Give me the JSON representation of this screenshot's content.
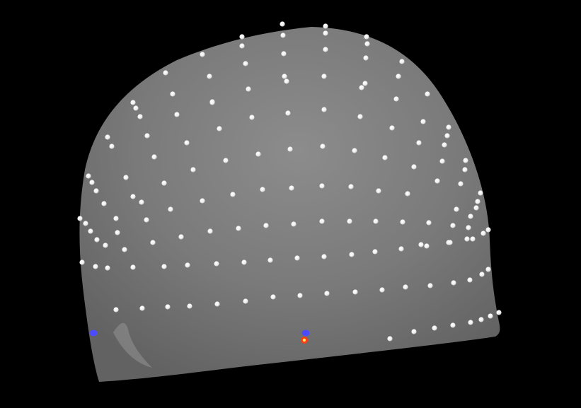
{
  "scene": {
    "background_color": "#000000",
    "head_color": "#7b7b7b",
    "head_shade_color": "#6a6a6a",
    "electrode_color": "#f2f2f2",
    "electrode_shadow_color": "#cfcfcf",
    "fiducial_color": "#4b4bff",
    "marker_color": "#ff3b14",
    "marker_center_color": "#ffe66b"
  }
}
